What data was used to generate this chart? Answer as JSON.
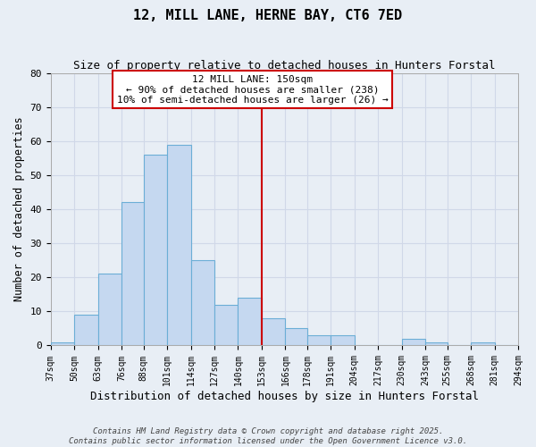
{
  "title": "12, MILL LANE, HERNE BAY, CT6 7ED",
  "subtitle": "Size of property relative to detached houses in Hunters Forstal",
  "xlabel": "Distribution of detached houses by size in Hunters Forstal",
  "ylabel": "Number of detached properties",
  "bin_labels": [
    "37sqm",
    "50sqm",
    "63sqm",
    "76sqm",
    "88sqm",
    "101sqm",
    "114sqm",
    "127sqm",
    "140sqm",
    "153sqm",
    "166sqm",
    "178sqm",
    "191sqm",
    "204sqm",
    "217sqm",
    "230sqm",
    "243sqm",
    "255sqm",
    "268sqm",
    "281sqm",
    "294sqm"
  ],
  "bin_edges": [
    37,
    50,
    63,
    76,
    88,
    101,
    114,
    127,
    140,
    153,
    166,
    178,
    191,
    204,
    217,
    230,
    243,
    255,
    268,
    281,
    294
  ],
  "bar_heights": [
    1,
    9,
    21,
    42,
    56,
    59,
    25,
    12,
    14,
    8,
    5,
    3,
    3,
    0,
    0,
    2,
    1,
    0,
    1,
    0
  ],
  "bar_color": "#c5d8f0",
  "bar_edge_color": "#6baed6",
  "vline_x": 153,
  "vline_color": "#cc0000",
  "ylim": [
    0,
    80
  ],
  "yticks": [
    0,
    10,
    20,
    30,
    40,
    50,
    60,
    70,
    80
  ],
  "annotation_title": "12 MILL LANE: 150sqm",
  "annotation_line1": "← 90% of detached houses are smaller (238)",
  "annotation_line2": "10% of semi-detached houses are larger (26) →",
  "annotation_box_color": "#ffffff",
  "annotation_box_edge": "#cc0000",
  "bg_color": "#e8eef5",
  "grid_color": "#d0d8e8",
  "footer1": "Contains HM Land Registry data © Crown copyright and database right 2025.",
  "footer2": "Contains public sector information licensed under the Open Government Licence v3.0."
}
